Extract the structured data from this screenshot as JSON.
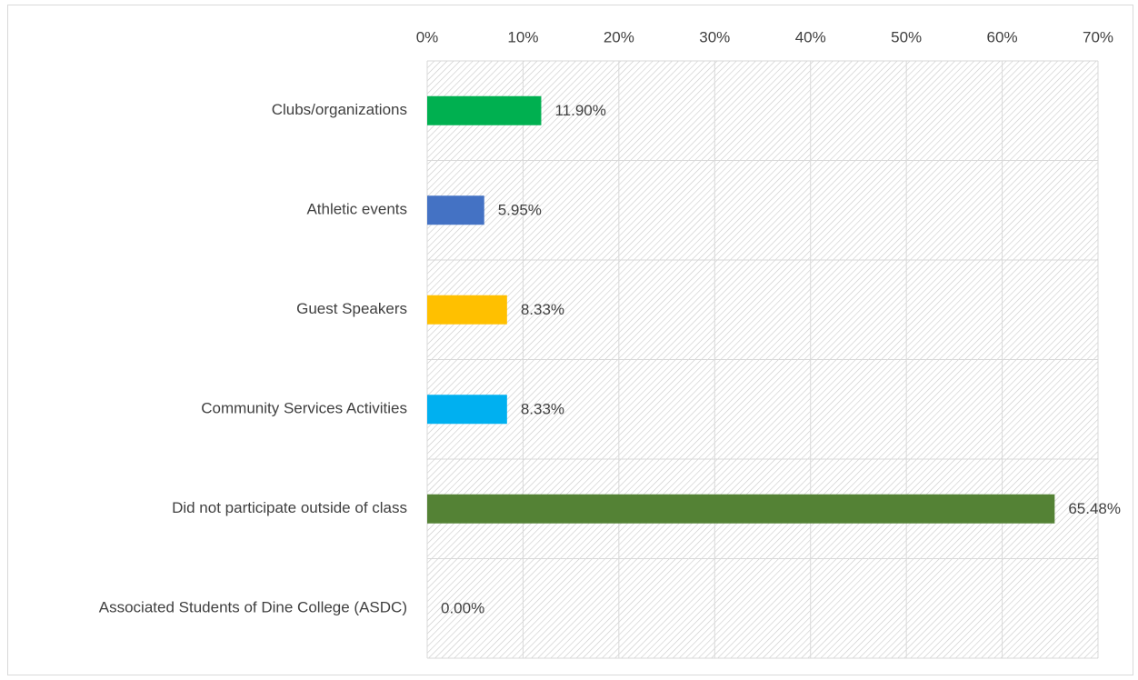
{
  "chart_data": {
    "type": "hbar",
    "categories": [
      "Clubs/organizations",
      "Athletic events",
      "Guest Speakers",
      "Community Services Activities",
      "Did not participate outside of class",
      "Associated Students of Dine College (ASDC)"
    ],
    "values": [
      11.9,
      5.95,
      8.33,
      8.33,
      65.48,
      0
    ],
    "value_labels": [
      "11.90%",
      "5.95%",
      "8.33%",
      "8.33%",
      "65.48%",
      "0.00%"
    ],
    "colors": [
      "#00b050",
      "#4472c4",
      "#ffc000",
      "#00b0f0",
      "#548235",
      "#a5a5a5"
    ],
    "xlim": [
      0,
      70
    ],
    "xticks": [
      {
        "value": 0,
        "label": "0%"
      },
      {
        "value": 10,
        "label": "10%"
      },
      {
        "value": 20,
        "label": "20%"
      },
      {
        "value": 30,
        "label": "30%"
      },
      {
        "value": 40,
        "label": "40%"
      },
      {
        "value": 50,
        "label": "50%"
      },
      {
        "value": 60,
        "label": "60%"
      },
      {
        "value": 70,
        "label": "70%"
      }
    ],
    "grid": true
  }
}
